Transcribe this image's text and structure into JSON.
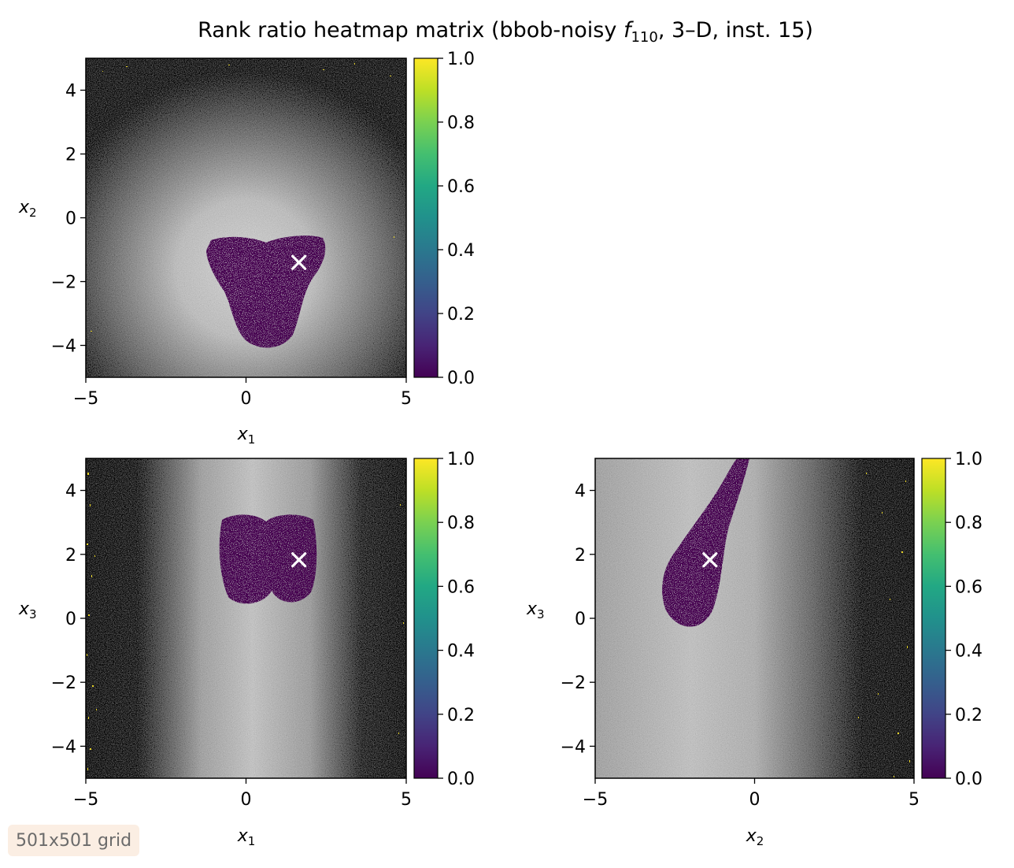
{
  "figure": {
    "title": "Rank ratio heatmap matrix (bbob-noisy f110, 3–D, inst. 15)",
    "title_parts": {
      "before": "Rank ratio heatmap matrix (bbob-noisy ",
      "f": "f",
      "sub": "110",
      "after": ", 3–D, inst. 15)"
    },
    "footer": "501x501 grid",
    "colorbar_ticks": [
      "0.0",
      "0.2",
      "0.4",
      "0.6",
      "0.8",
      "1.0"
    ],
    "colormap": "viridis",
    "marker_color": "#ffffff"
  },
  "chart_data": [
    {
      "type": "heatmap",
      "panel": "x1-x2",
      "xlabel": "x",
      "xlabel_sub": "1",
      "ylabel": "x",
      "ylabel_sub": "2",
      "xlim": [
        -5,
        5
      ],
      "ylim": [
        -5,
        5
      ],
      "xticks": [
        -5,
        0,
        5
      ],
      "xtick_labels": [
        "−5",
        "0",
        "5"
      ],
      "yticks": [
        -4,
        -2,
        0,
        2,
        4
      ],
      "ytick_labels": [
        "−4",
        "−2",
        "0",
        "2",
        "4"
      ],
      "clim": [
        0,
        1
      ],
      "optimum": {
        "x": 1.65,
        "y": -1.4
      }
    },
    {
      "type": "heatmap",
      "panel": "x1-x3",
      "xlabel": "x",
      "xlabel_sub": "1",
      "ylabel": "x",
      "ylabel_sub": "3",
      "xlim": [
        -5,
        5
      ],
      "ylim": [
        -5,
        5
      ],
      "xticks": [
        -5,
        0,
        5
      ],
      "xtick_labels": [
        "−5",
        "0",
        "5"
      ],
      "yticks": [
        -4,
        -2,
        0,
        2,
        4
      ],
      "ytick_labels": [
        "−4",
        "−2",
        "0",
        "2",
        "4"
      ],
      "clim": [
        0,
        1
      ],
      "optimum": {
        "x": 1.65,
        "y": 1.83
      }
    },
    {
      "type": "heatmap",
      "panel": "x2-x3",
      "xlabel": "x",
      "xlabel_sub": "2",
      "ylabel": "x",
      "ylabel_sub": "3",
      "xlim": [
        -5,
        5
      ],
      "ylim": [
        -5,
        5
      ],
      "xticks": [
        -5,
        0,
        5
      ],
      "xtick_labels": [
        "−5",
        "0",
        "5"
      ],
      "yticks": [
        -4,
        -2,
        0,
        2,
        4
      ],
      "ytick_labels": [
        "−4",
        "−2",
        "0",
        "2",
        "4"
      ],
      "clim": [
        0,
        1
      ],
      "optimum": {
        "x": -1.4,
        "y": 1.83
      }
    }
  ]
}
